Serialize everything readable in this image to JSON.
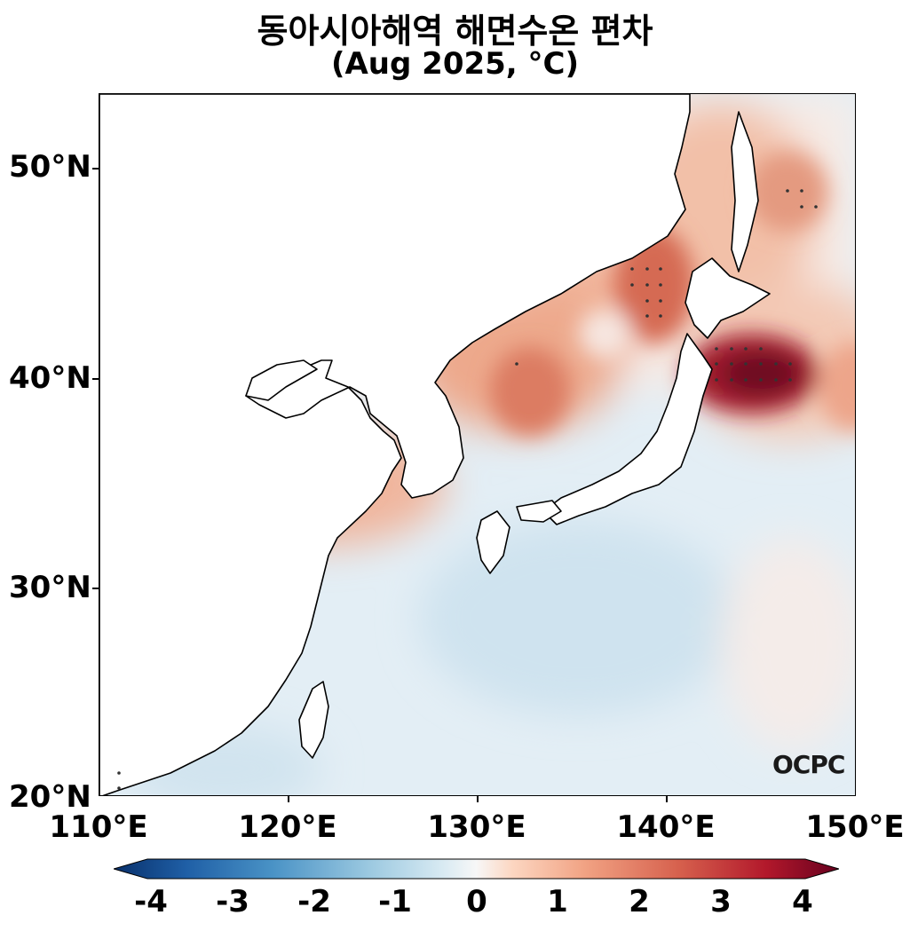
{
  "title": {
    "line1": "동아시아해역 해면수온 편차",
    "line2": "(Aug 2025, °C)"
  },
  "map": {
    "lon_range": [
      110,
      150
    ],
    "lat_range": [
      20,
      53.5
    ],
    "x_ticks": [
      "110°E",
      "120°E",
      "130°E",
      "140°E",
      "150°E"
    ],
    "y_ticks": [
      "50°N",
      "40°N",
      "30°N",
      "20°N"
    ],
    "stippling": "significant anomaly dots"
  },
  "colorbar": {
    "labels": [
      "-4",
      "-3",
      "-2",
      "-1",
      "0",
      "1",
      "2",
      "3",
      "4"
    ],
    "min": -4,
    "max": 4,
    "extend": "both",
    "cmap": "RdBu_r",
    "colors_low_to_high": [
      "#08306b",
      "#1f5fa6",
      "#4a93c6",
      "#9ac8e0",
      "#d6e9f2",
      "#f7f7f7",
      "#fcd6c1",
      "#f1a283",
      "#d6604d",
      "#b2182b",
      "#67001f"
    ]
  },
  "logo": {
    "text": "OCPC"
  }
}
